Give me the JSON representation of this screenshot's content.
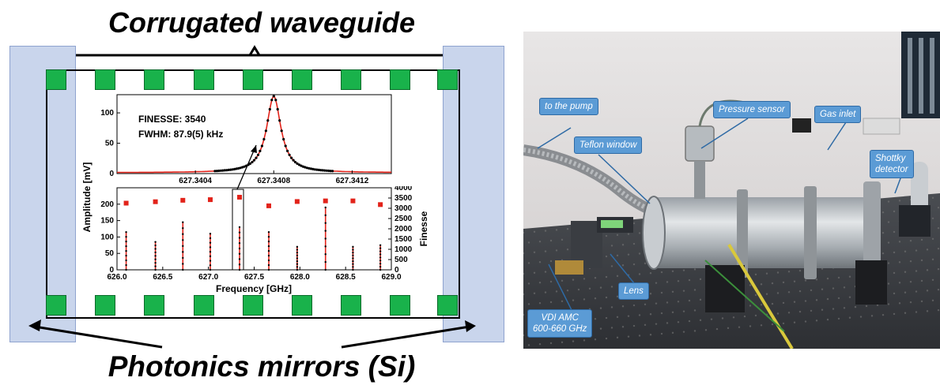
{
  "left_panel": {
    "title_top": "Corrugated waveguide",
    "title_bottom": "Photonics mirrors (Si)"
  },
  "colors": {
    "mirror_fill": "#c9d5ec",
    "corrugation_green": "#19b24b",
    "data_red": "#e2231a",
    "callout_blue": "#5b9bd5"
  },
  "top_plot": {
    "annotation_finesse": "FINESSE: 3540",
    "annotation_fwhm": "FWHM: 87.9(5) kHz",
    "y_ticks": [
      "0",
      "50",
      "100"
    ],
    "x_ticks": [
      "627.3404",
      "627.3408",
      "627.3412"
    ]
  },
  "bottom_plot": {
    "y_left_ticks": [
      "0",
      "50",
      "100",
      "150",
      "200"
    ],
    "y_right_ticks": [
      "0",
      "500",
      "1000",
      "1500",
      "2000",
      "2500",
      "3000",
      "3500",
      "4000"
    ],
    "y_right_label": "Finesse",
    "x_ticks": [
      "626.0",
      "626.5",
      "627.0",
      "627.5",
      "628.0",
      "628.5",
      "629.0"
    ],
    "x_label": "Frequency [GHz]"
  },
  "shared_y_label": "Amplitude [mV]",
  "chart_data": [
    {
      "type": "line",
      "title": "",
      "xlabel": "",
      "ylabel": "Amplitude [mV]",
      "xlim": [
        627.34,
        627.3414
      ],
      "ylim": [
        0,
        130
      ],
      "grid": false,
      "peak": {
        "center": 627.3408,
        "height": 126,
        "fwhm_khz": 87.9
      }
    },
    {
      "type": "scatter",
      "title": "",
      "xlabel": "Frequency [GHz]",
      "ylabel": "Amplitude [mV]",
      "ylabel_right": "Finesse",
      "xlim": [
        626.0,
        629.0
      ],
      "ylim": [
        0,
        250
      ],
      "ylim_right": [
        0,
        4000
      ],
      "grid": false,
      "resonances": [
        {
          "x": 626.1,
          "amplitude": 115,
          "finesse": 3250
        },
        {
          "x": 626.42,
          "amplitude": 85,
          "finesse": 3320
        },
        {
          "x": 626.72,
          "amplitude": 145,
          "finesse": 3390
        },
        {
          "x": 627.02,
          "amplitude": 110,
          "finesse": 3420
        },
        {
          "x": 627.34,
          "amplitude": 130,
          "finesse": 3540
        },
        {
          "x": 627.66,
          "amplitude": 115,
          "finesse": 3120
        },
        {
          "x": 627.97,
          "amplitude": 70,
          "finesse": 3330
        },
        {
          "x": 628.28,
          "amplitude": 190,
          "finesse": 3360
        },
        {
          "x": 628.58,
          "amplitude": 70,
          "finesse": 3360
        },
        {
          "x": 628.88,
          "amplitude": 75,
          "finesse": 3180
        }
      ]
    }
  ],
  "photo_labels": {
    "to_pump": "to the pump",
    "pressure_sensor": "Pressure sensor",
    "gas_inlet": "Gas inlet",
    "teflon_window": "Teflon window",
    "shottky_line1": "Shottky",
    "shottky_line2": "detector",
    "lens": "Lens",
    "vdi_line1": "VDI AMC",
    "vdi_line2": "600-660 GHz"
  }
}
